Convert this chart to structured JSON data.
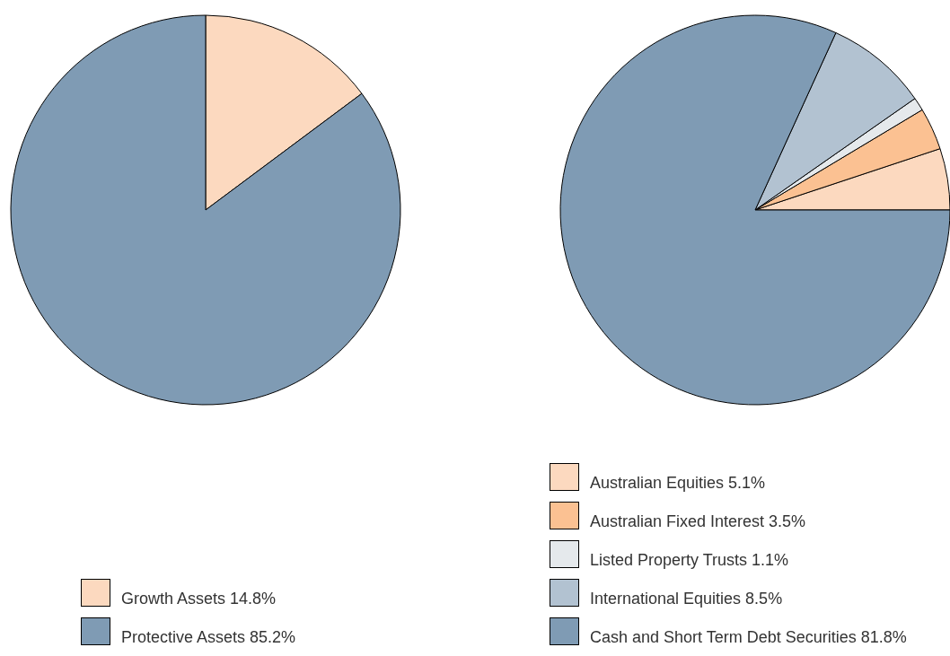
{
  "chart_data": [
    {
      "type": "pie",
      "categories": [
        "Growth Assets",
        "Protective Assets"
      ],
      "values": [
        14.8,
        85.2
      ],
      "colors": [
        "#fcd9bf",
        "#7f9bb4"
      ],
      "value_labels": [
        "14.8%",
        "85.2%"
      ],
      "legend": "bottom"
    },
    {
      "type": "pie",
      "categories": [
        "Australian Equities",
        "Australian Fixed Interest",
        "Listed Property Trusts",
        "International Equities",
        "Cash and Short Term Debt Securities"
      ],
      "values": [
        5.1,
        3.5,
        1.1,
        8.5,
        81.8
      ],
      "colors": [
        "#fcd9bf",
        "#fbc192",
        "#e5e9ec",
        "#b2c2d1",
        "#7f9bb4"
      ],
      "value_labels": [
        "5.1%",
        "3.5%",
        "1.1%",
        "8.5%",
        "81.8%"
      ],
      "legend": "bottom"
    }
  ]
}
